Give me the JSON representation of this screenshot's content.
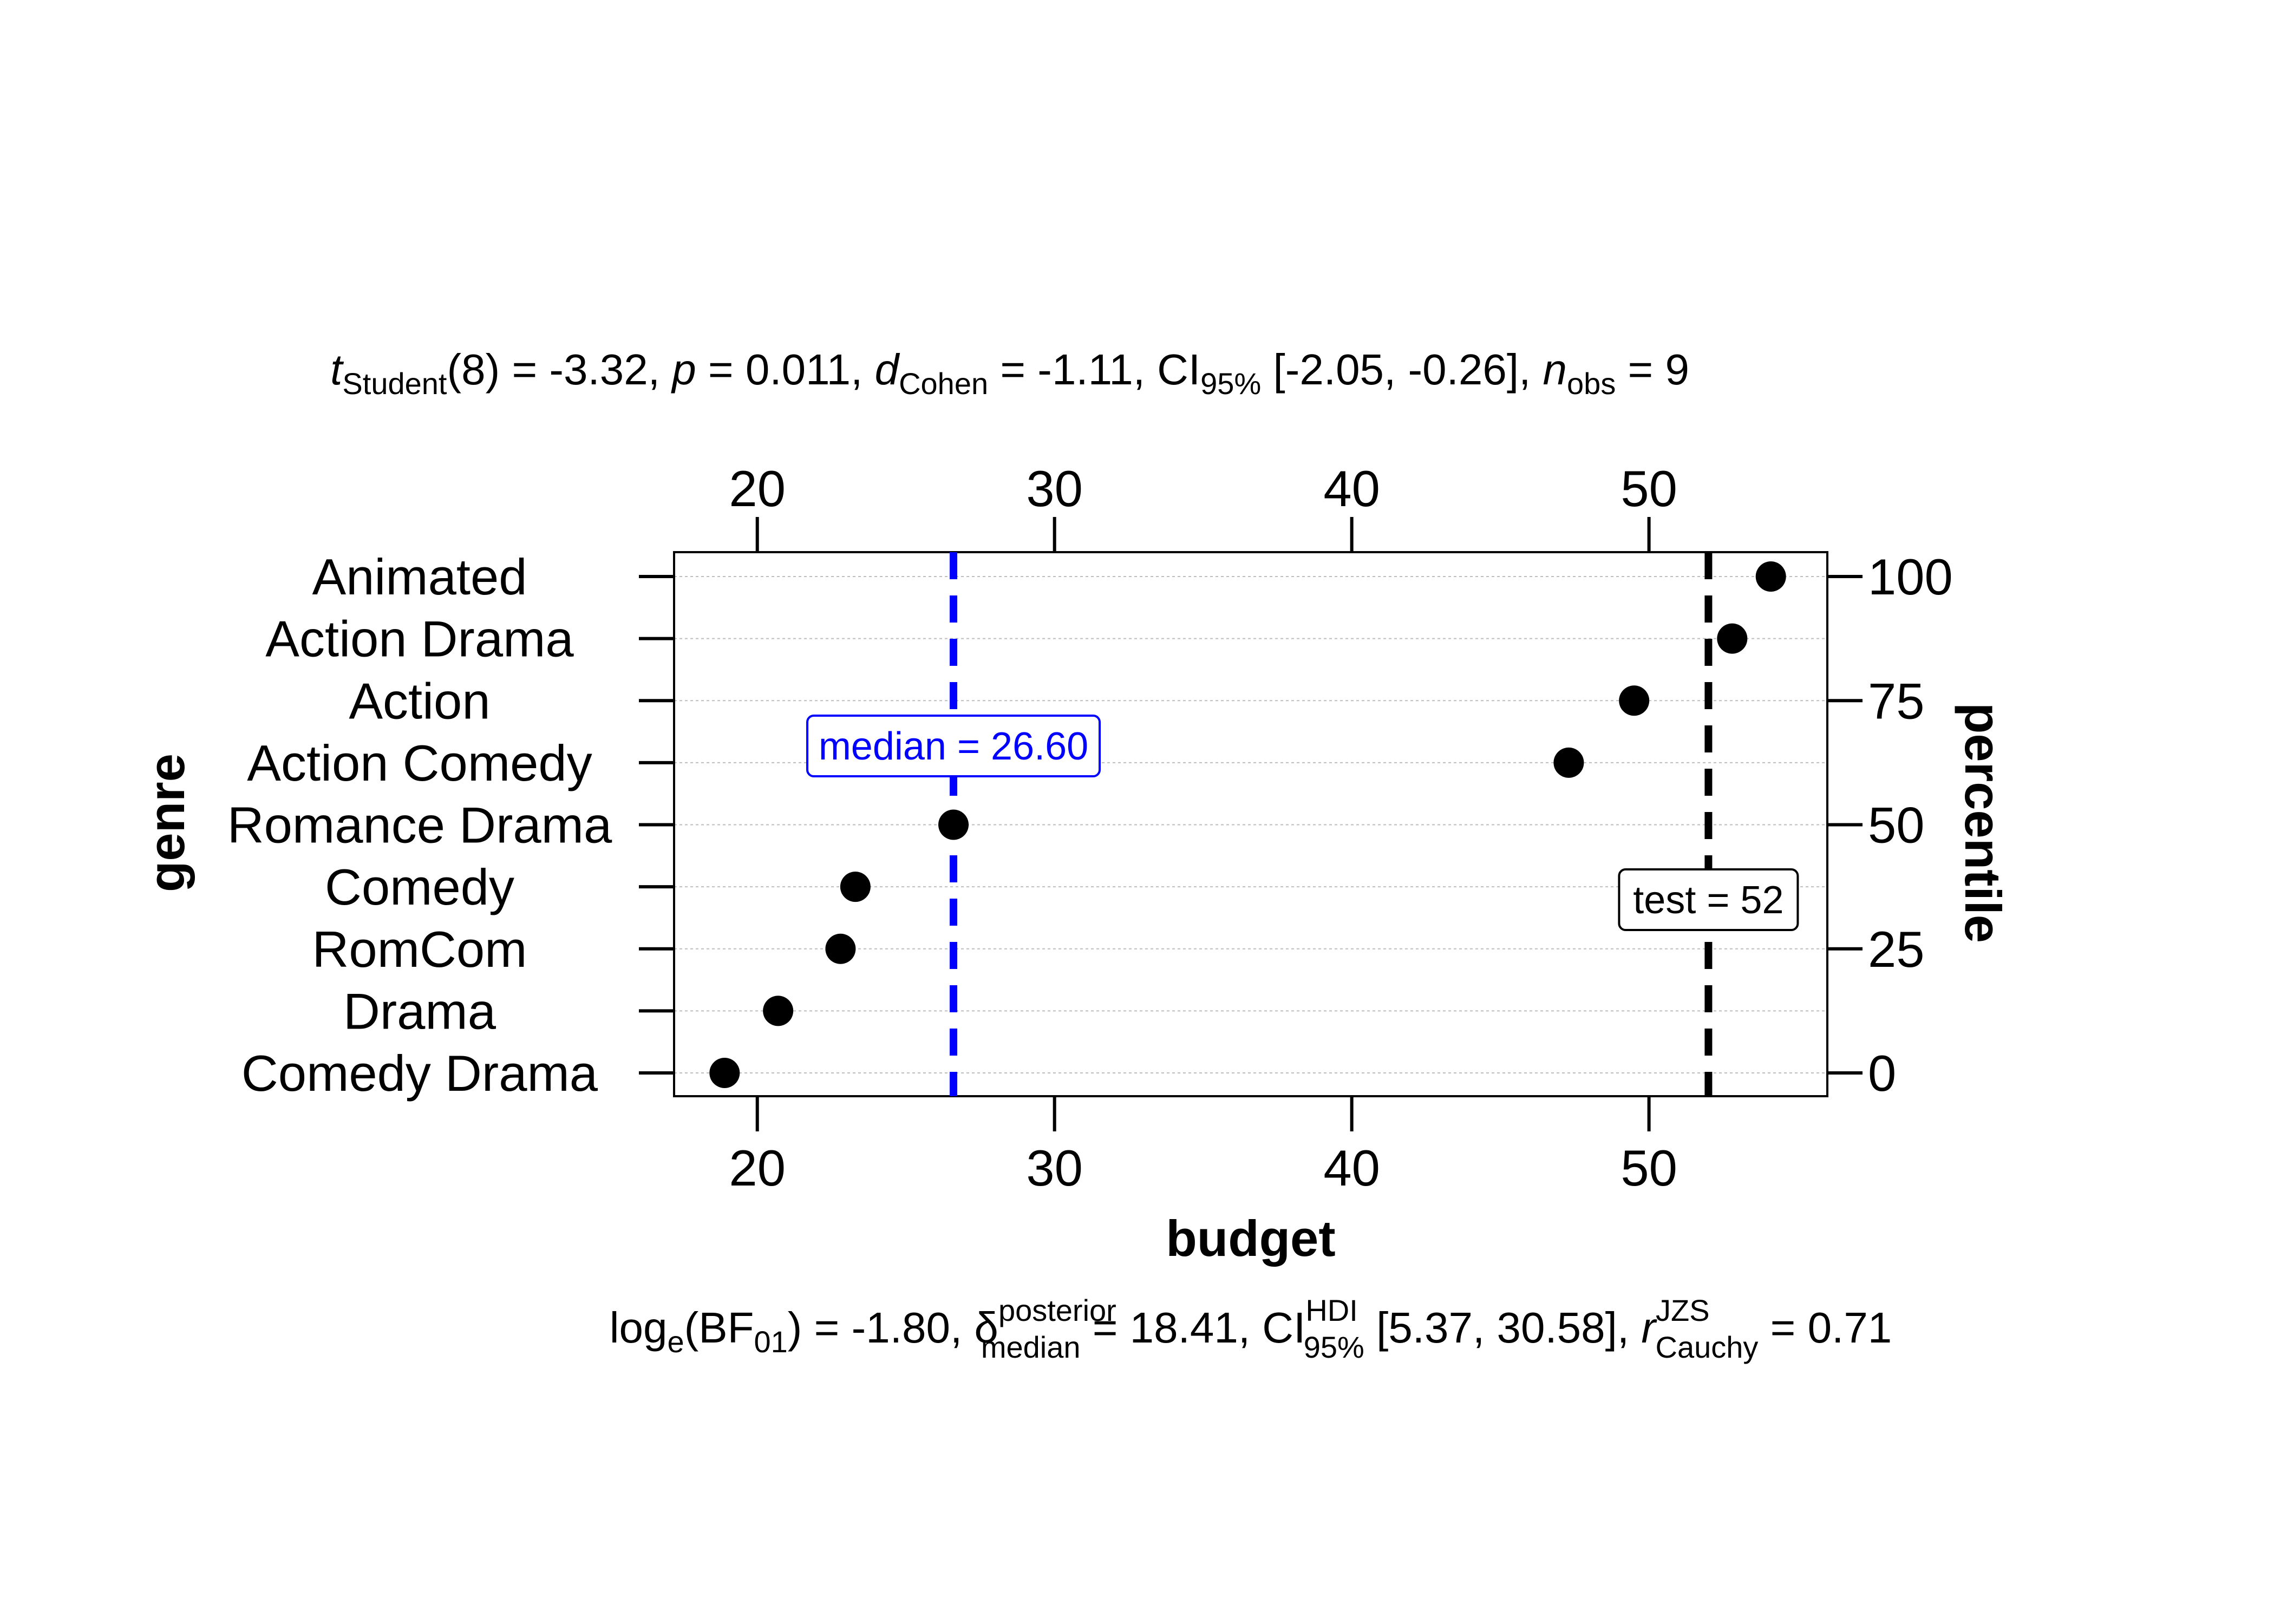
{
  "chart_data": {
    "type": "scatter",
    "subtitle": {
      "t_sym": "t",
      "t_sub": "Student",
      "t_rest": "(8) = -3.32, ",
      "p_sym": "p",
      "p_rest": " = 0.011, ",
      "d_sym": "d",
      "d_sub": "Cohen",
      "d_rest": " = -1.11, CI",
      "ci_sub": "95%",
      "ci_rest": " [-2.05, -0.26], ",
      "n_sym": "n",
      "n_sub": "obs",
      "n_rest": " = 9"
    },
    "caption": {
      "log": "log",
      "log_sub": "e",
      "bf": "(BF",
      "bf_sub": "01",
      "bf_rest": ") = -1.80, ",
      "delta": "δ",
      "delta_sup": "posterior",
      "delta_sub": "median",
      "delta_rest": " = 18.41, CI",
      "ci_sup": "HDI",
      "ci_sub": "95%",
      "ci_rest": " [5.37, 30.58], ",
      "r": "r",
      "r_sup": "JZS",
      "r_sub": "Cauchy",
      "r_rest": " = 0.71"
    },
    "xlabel": "budget",
    "ylabel": "genre",
    "y2label": "percentile",
    "xlim": [
      17.2,
      56.0
    ],
    "xticks": [
      20,
      30,
      40,
      50
    ],
    "categories": [
      "Comedy Drama",
      "Drama",
      "RomCom",
      "Comedy",
      "Romance Drama",
      "Action Comedy",
      "Action",
      "Action Drama",
      "Animated"
    ],
    "values": [
      18.9,
      20.7,
      22.8,
      23.3,
      26.6,
      47.3,
      49.5,
      52.8,
      54.1
    ],
    "percentile_ticks": [
      0,
      25,
      50,
      75,
      100
    ],
    "median_line": {
      "value": 26.6,
      "label": "median = 26.60",
      "color": "#0000ff"
    },
    "test_line": {
      "value": 52,
      "label": "test = 52",
      "color": "#000000"
    },
    "point_color": "#000000",
    "grid": true
  }
}
